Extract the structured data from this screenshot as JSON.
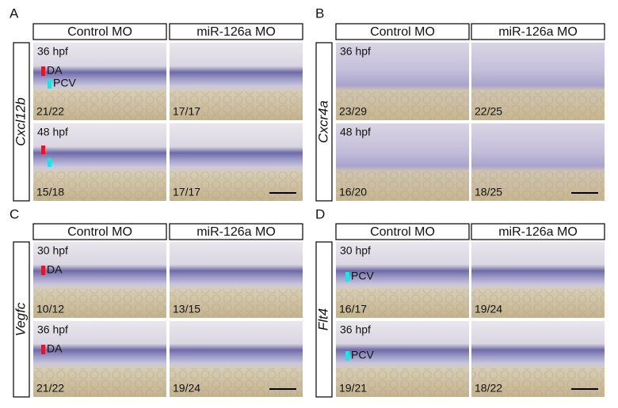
{
  "panels": [
    {
      "letter": "A",
      "gene": "Cxcl12b",
      "columns": [
        "Control MO",
        "miR-126a MO"
      ],
      "rows": [
        {
          "stage": "36 hpf",
          "counts": [
            "21/22",
            "17/17"
          ],
          "annotations": [
            "DA",
            "PCV"
          ]
        },
        {
          "stage": "48 hpf",
          "counts": [
            "15/18",
            "17/17"
          ]
        }
      ]
    },
    {
      "letter": "B",
      "gene": "Cxcr4a",
      "columns": [
        "Control MO",
        "miR-126a MO"
      ],
      "rows": [
        {
          "stage": "36 hpf",
          "counts": [
            "23/29",
            "22/25"
          ]
        },
        {
          "stage": "48 hpf",
          "counts": [
            "16/20",
            "18/25"
          ]
        }
      ]
    },
    {
      "letter": "C",
      "gene": "Vegfc",
      "columns": [
        "Control MO",
        "miR-126a MO"
      ],
      "rows": [
        {
          "stage": "30 hpf",
          "counts": [
            "10/12",
            "13/15"
          ],
          "annotations": [
            "DA"
          ]
        },
        {
          "stage": "36 hpf",
          "counts": [
            "21/22",
            "19/24"
          ],
          "annotations": [
            "DA"
          ]
        }
      ]
    },
    {
      "letter": "D",
      "gene": "Flt4",
      "columns": [
        "Control MO",
        "miR-126a MO"
      ],
      "rows": [
        {
          "stage": "30 hpf",
          "counts": [
            "16/17",
            "19/24"
          ],
          "annotations": [
            "PCV"
          ]
        },
        {
          "stage": "36 hpf",
          "counts": [
            "19/21",
            "18/22"
          ],
          "annotations": [
            "PCV"
          ]
        }
      ]
    }
  ]
}
